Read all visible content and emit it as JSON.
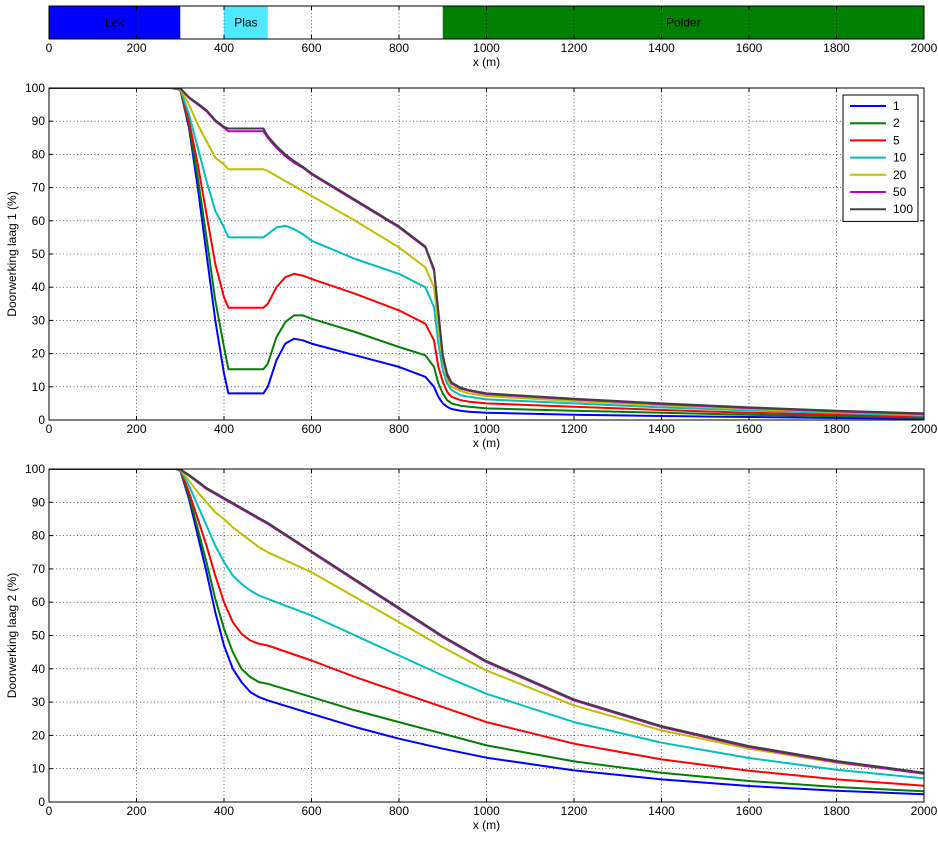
{
  "chart_data": [
    {
      "type": "bar",
      "xlabel": "x (m)",
      "xlim": [
        0,
        2000
      ],
      "xticks": [
        0,
        200,
        400,
        600,
        800,
        1000,
        1200,
        1400,
        1600,
        1800,
        2000
      ],
      "grid": true,
      "zones": [
        {
          "label": "Lek",
          "start": 0,
          "end": 300,
          "color": "#0000ff"
        },
        {
          "label": "Plas",
          "start": 400,
          "end": 500,
          "color": "#4ee9ff"
        },
        {
          "label": "Polder",
          "start": 900,
          "end": 2000,
          "color": "#008000"
        }
      ]
    },
    {
      "type": "line",
      "xlabel": "x (m)",
      "ylabel": "Doorwerking laag 1 (%)",
      "xlim": [
        0,
        2000
      ],
      "ylim": [
        0,
        100
      ],
      "xticks": [
        0,
        200,
        400,
        600,
        800,
        1000,
        1200,
        1400,
        1600,
        1800,
        2000
      ],
      "yticks": [
        0,
        10,
        20,
        30,
        40,
        50,
        60,
        70,
        80,
        90,
        100
      ],
      "grid": true,
      "legend": "top-right",
      "x": [
        0,
        280,
        300,
        320,
        340,
        360,
        380,
        400,
        410,
        450,
        490,
        500,
        520,
        540,
        560,
        580,
        600,
        700,
        800,
        860,
        880,
        890,
        900,
        910,
        920,
        940,
        960,
        1000,
        1200,
        1400,
        1600,
        1800,
        2000
      ],
      "series": [
        {
          "name": "1",
          "color": "#0000ff",
          "values": [
            100,
            100,
            99.5,
            88,
            70,
            50,
            30,
            14,
            8,
            8,
            8,
            10,
            18,
            23,
            24.5,
            24,
            23,
            19.5,
            16,
            13,
            10,
            7,
            5,
            4,
            3.3,
            2.8,
            2.5,
            2.2,
            1.6,
            1.2,
            0.9,
            0.6,
            0.4
          ]
        },
        {
          "name": "2",
          "color": "#007f00",
          "values": [
            100,
            100,
            99.5,
            89,
            73,
            55,
            36,
            22,
            15.3,
            15.3,
            15.3,
            17,
            25,
            29.5,
            31.5,
            31.5,
            30.5,
            26.5,
            22,
            19.5,
            16,
            11,
            8,
            6,
            5,
            4.3,
            4,
            3.5,
            2.8,
            2.2,
            1.6,
            1.1,
            0.7
          ]
        },
        {
          "name": "5",
          "color": "#ff0000",
          "values": [
            100,
            100,
            99.5,
            90,
            77,
            62,
            47,
            37,
            33.8,
            33.8,
            33.8,
            35,
            40,
            43,
            44,
            43.5,
            42.5,
            38,
            33,
            29,
            24,
            16,
            11.5,
            8.5,
            7,
            6,
            5.5,
            5,
            4,
            3,
            2.2,
            1.6,
            1
          ]
        },
        {
          "name": "10",
          "color": "#00bfbf",
          "values": [
            100,
            100,
            99.7,
            92,
            82,
            72,
            63,
            58,
            55,
            55,
            55,
            56,
            58,
            58.5,
            57.5,
            56,
            54,
            48.5,
            44,
            40,
            34,
            23,
            15,
            11,
            9,
            7.5,
            7,
            6.2,
            5,
            3.8,
            2.9,
            2.1,
            1.3
          ]
        },
        {
          "name": "20",
          "color": "#bfbf00",
          "values": [
            100,
            100,
            99.8,
            95,
            89,
            84,
            79,
            77,
            75.5,
            75.5,
            75.5,
            75,
            73.5,
            72,
            70.5,
            69,
            67.5,
            60,
            52,
            46,
            40,
            28,
            18,
            12.5,
            10,
            8.8,
            8,
            7.2,
            5.7,
            4.4,
            3.3,
            2.4,
            1.6
          ]
        },
        {
          "name": "50",
          "color": "#bf00bf",
          "values": [
            100,
            100,
            99.9,
            97,
            95,
            93,
            90,
            88,
            87,
            87,
            87,
            85,
            82,
            79.5,
            77.5,
            76,
            74,
            66,
            58,
            52,
            45,
            32,
            19,
            13.5,
            11,
            9.5,
            8.8,
            7.8,
            6.2,
            4.8,
            3.6,
            2.6,
            1.8
          ]
        },
        {
          "name": "100",
          "color": "#404040",
          "values": [
            100,
            100,
            99.9,
            97.2,
            95.3,
            93.3,
            90.3,
            88.3,
            87.8,
            87.8,
            87.8,
            85.5,
            82.5,
            80,
            78,
            76.3,
            74.3,
            66.3,
            58.3,
            52.3,
            45.5,
            32.5,
            19.5,
            14,
            11.3,
            9.8,
            9,
            8,
            6.4,
            5,
            3.8,
            2.8,
            2
          ]
        }
      ]
    },
    {
      "type": "line",
      "xlabel": "x (m)",
      "ylabel": "Doorwerking laag 2 (%)",
      "xlim": [
        0,
        2000
      ],
      "ylim": [
        0,
        100
      ],
      "xticks": [
        0,
        200,
        400,
        600,
        800,
        1000,
        1200,
        1400,
        1600,
        1800,
        2000
      ],
      "yticks": [
        0,
        10,
        20,
        30,
        40,
        50,
        60,
        70,
        80,
        90,
        100
      ],
      "grid": true,
      "x": [
        0,
        290,
        300,
        320,
        340,
        360,
        380,
        400,
        420,
        440,
        460,
        480,
        500,
        600,
        700,
        800,
        900,
        1000,
        1200,
        1400,
        1600,
        1800,
        2000
      ],
      "series": [
        {
          "name": "1",
          "color": "#0000ff",
          "values": [
            100,
            100,
            99.5,
            91,
            80,
            69,
            57,
            47,
            40,
            36,
            33,
            31.5,
            30.5,
            26.5,
            22.5,
            19,
            16,
            13.3,
            9.5,
            6.8,
            4.8,
            3.4,
            2.3
          ]
        },
        {
          "name": "2",
          "color": "#007f00",
          "values": [
            100,
            100,
            99.6,
            92,
            82,
            72,
            61,
            52,
            45,
            40,
            37.5,
            36,
            35.5,
            31.5,
            27.5,
            24,
            20.5,
            17,
            12.2,
            8.8,
            6.3,
            4.5,
            3.2
          ]
        },
        {
          "name": "5",
          "color": "#ff0000",
          "values": [
            100,
            100,
            99.7,
            93,
            85,
            77,
            68,
            60,
            54,
            50.5,
            48.5,
            47.5,
            47,
            42.5,
            37.5,
            33,
            28.5,
            24,
            17.5,
            12.8,
            9.4,
            6.8,
            4.9
          ]
        },
        {
          "name": "10",
          "color": "#00bfbf",
          "values": [
            100,
            100,
            99.8,
            95,
            89,
            83,
            77,
            72,
            68,
            65.5,
            63.5,
            62,
            61,
            56,
            50,
            44,
            38,
            32.5,
            24,
            17.8,
            13.2,
            9.7,
            7.1
          ]
        },
        {
          "name": "20",
          "color": "#bfbf00",
          "values": [
            100,
            100,
            99.9,
            96.5,
            93,
            90,
            87,
            85,
            82.5,
            80.5,
            78.5,
            76.5,
            75,
            69,
            61.5,
            54,
            46.5,
            39.5,
            29,
            21.5,
            16,
            11.8,
            8.6
          ]
        },
        {
          "name": "50",
          "color": "#bf00bf",
          "values": [
            100,
            100,
            99.9,
            98,
            96,
            94,
            92.5,
            91,
            89.5,
            88,
            86.5,
            85,
            83.5,
            75,
            66.5,
            58,
            49.5,
            42,
            30.5,
            22.5,
            16.5,
            12,
            8.5
          ]
        },
        {
          "name": "100",
          "color": "#404040",
          "values": [
            100,
            100,
            99.9,
            98.2,
            96.3,
            94.3,
            92.8,
            91.3,
            89.8,
            88.3,
            86.8,
            85.3,
            83.8,
            75.3,
            66.8,
            58.3,
            49.8,
            42.3,
            30.8,
            22.8,
            16.8,
            12.3,
            8.8
          ]
        }
      ]
    }
  ]
}
